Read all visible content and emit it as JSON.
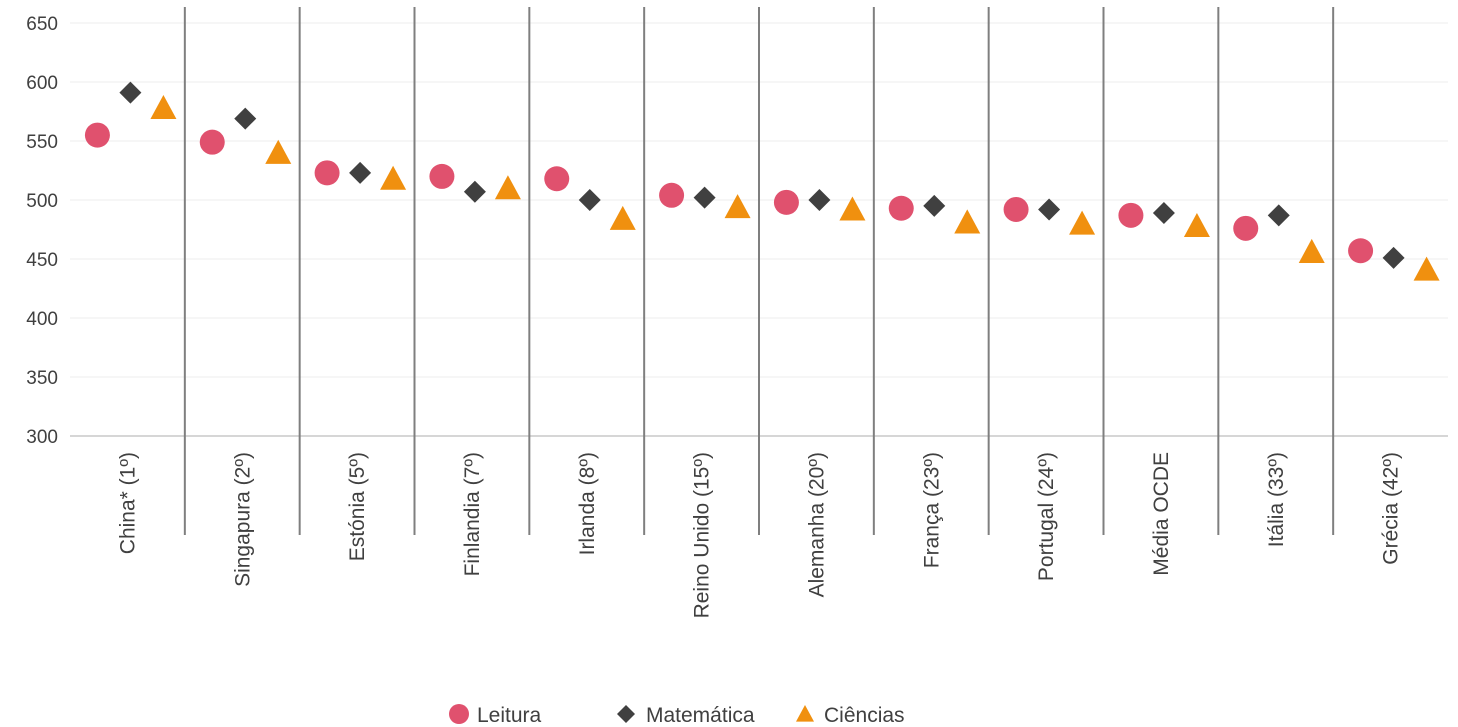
{
  "chart_data": {
    "type": "scatter",
    "categories": [
      "China* (1º)",
      "Singapura (2º)",
      "Estónia (5º)",
      "Finlandia (7º)",
      "Irlanda (8º)",
      "Reino Unido (15º)",
      "Alemanha (20º)",
      "França (23º)",
      "Portugal (24º)",
      "Média OCDE",
      "Itália (33º)",
      "Grécia (42º)"
    ],
    "series": [
      {
        "name": "Leitura",
        "marker": "circle",
        "color": "#e0516e",
        "values": [
          555,
          549,
          523,
          520,
          518,
          504,
          498,
          493,
          492,
          487,
          476,
          457
        ]
      },
      {
        "name": "Matemática",
        "marker": "diamond",
        "color": "#404040",
        "values": [
          591,
          569,
          523,
          507,
          500,
          502,
          500,
          495,
          492,
          489,
          487,
          451
        ]
      },
      {
        "name": "Ciências",
        "marker": "triangle",
        "color": "#f0900f",
        "values": [
          578,
          540,
          518,
          510,
          484,
          494,
          492,
          481,
          480,
          478,
          456,
          441
        ]
      }
    ],
    "yticks": [
      300,
      350,
      400,
      450,
      500,
      550,
      600,
      650
    ],
    "ylim": [
      300,
      650
    ],
    "grid": true,
    "legend": "bottom-center"
  }
}
